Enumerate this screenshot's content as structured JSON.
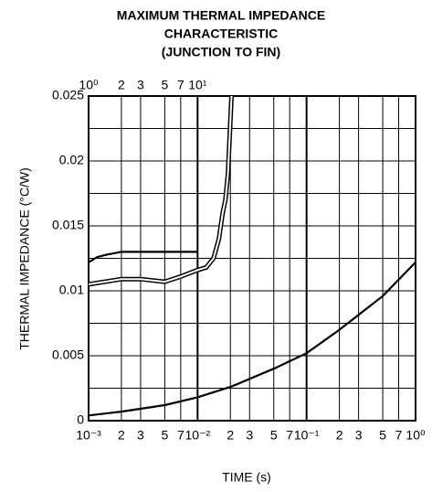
{
  "chart_data": {
    "type": "line",
    "title": [
      "MAXIMUM THERMAL IMPEDANCE",
      "CHARACTERISTIC",
      "(JUNCTION TO FIN)"
    ],
    "x_label": "TIME  (s)",
    "y_label": "THERMAL IMPEDANCE  (°C/W)",
    "x_scale": "log",
    "x2_scale": "log",
    "grid": true,
    "xlim": [
      0.001,
      1
    ],
    "xticks": [
      {
        "value": 0.001,
        "label": "10⁻³"
      },
      {
        "value": 0.002,
        "label": "2"
      },
      {
        "value": 0.003,
        "label": "3"
      },
      {
        "value": 0.005,
        "label": "5"
      },
      {
        "value": 0.007,
        "label": "7"
      },
      {
        "value": 0.01,
        "label": "10⁻²"
      },
      {
        "value": 0.02,
        "label": "2"
      },
      {
        "value": 0.03,
        "label": "3"
      },
      {
        "value": 0.05,
        "label": "5"
      },
      {
        "value": 0.07,
        "label": "7"
      },
      {
        "value": 0.1,
        "label": "10⁻¹"
      },
      {
        "value": 0.2,
        "label": "2"
      },
      {
        "value": 0.3,
        "label": "3"
      },
      {
        "value": 0.5,
        "label": "5"
      },
      {
        "value": 0.7,
        "label": "7"
      },
      {
        "value": 1,
        "label": "10⁰"
      }
    ],
    "x2lim": [
      1,
      1000
    ],
    "x2ticks": [
      {
        "value": 1,
        "label": "10⁰"
      },
      2,
      3,
      5,
      7,
      {
        "value": 10,
        "label": "10¹"
      }
    ],
    "ylim": [
      0,
      0.025
    ],
    "yticks": [
      0,
      0.005,
      0.01,
      0.015,
      0.02,
      0.025
    ],
    "yticks_minor": [
      0.0025,
      0.0075,
      0.0125,
      0.0175,
      0.0225
    ],
    "series": [
      {
        "color": "#000000",
        "style": "solid",
        "x": [
          0.001,
          0.002,
          0.005,
          0.01,
          0.02,
          0.05,
          0.1,
          0.2,
          0.5,
          1
        ],
        "values": [
          0.0004,
          0.0007,
          0.0012,
          0.0018,
          0.0026,
          0.004,
          0.0052,
          0.007,
          0.0096,
          0.0122
        ]
      },
      {
        "color": "#000000",
        "style": "solid",
        "x": [
          0.001,
          0.0012,
          0.0015,
          0.002,
          0.003,
          0.005,
          0.01
        ],
        "values": [
          0.0122,
          0.0126,
          0.0128,
          0.013,
          0.013,
          0.013,
          0.013
        ]
      },
      {
        "color": "#000000",
        "style": "double",
        "axis": "x2",
        "x": [
          1,
          2,
          3,
          5,
          7,
          10,
          12,
          14,
          15.7,
          17,
          18,
          19,
          20.5
        ],
        "values": [
          0.0105,
          0.0109,
          0.0109,
          0.0107,
          0.0111,
          0.0116,
          0.0118,
          0.0125,
          0.014,
          0.016,
          0.017,
          0.019,
          0.025
        ]
      }
    ]
  }
}
